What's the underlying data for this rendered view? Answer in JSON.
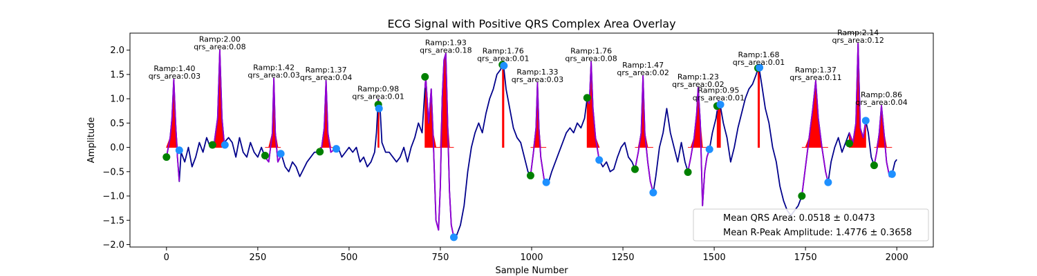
{
  "chart_data": {
    "type": "line",
    "title": "ECG Signal with Positive QRS Complex Area Overlay",
    "xlabel": "Sample Number",
    "ylabel": "Amplitude",
    "xlim": [
      -100,
      2100
    ],
    "ylim": [
      -2.05,
      2.35
    ],
    "grid": false,
    "x_ticks": [
      0,
      250,
      500,
      750,
      1000,
      1250,
      1500,
      1750,
      2000
    ],
    "x_tick_labels": [
      "0",
      "250",
      "500",
      "750",
      "1000",
      "1250",
      "1500",
      "1750",
      "2000"
    ],
    "y_ticks": [
      -2.0,
      -1.5,
      -1.0,
      -0.5,
      0.0,
      0.5,
      1.0,
      1.5,
      2.0
    ],
    "y_tick_labels": [
      "−2.0",
      "−1.5",
      "−1.0",
      "−0.5",
      "0.0",
      "0.5",
      "1.0",
      "1.5",
      "2.0"
    ],
    "colors": {
      "signal": "#00008b",
      "qrs_segment": "#9400d3",
      "qrs_fill": "#ff0000",
      "q_onset": "#008000",
      "s_offset": "#1e90ff"
    },
    "signal_points": [
      [
        0,
        -0.2
      ],
      [
        10,
        0.2
      ],
      [
        15,
        0.6
      ],
      [
        20,
        1.4
      ],
      [
        25,
        0.5
      ],
      [
        30,
        -0.2
      ],
      [
        35,
        -0.7
      ],
      [
        40,
        -0.1
      ],
      [
        50,
        -0.3
      ],
      [
        60,
        0.0
      ],
      [
        70,
        -0.4
      ],
      [
        80,
        -0.2
      ],
      [
        90,
        0.1
      ],
      [
        100,
        -0.1
      ],
      [
        110,
        0.2
      ],
      [
        120,
        0.0
      ],
      [
        130,
        0.05
      ],
      [
        140,
        0.6
      ],
      [
        146,
        2.0
      ],
      [
        152,
        0.6
      ],
      [
        158,
        0.1
      ],
      [
        170,
        0.2
      ],
      [
        180,
        0.1
      ],
      [
        190,
        -0.2
      ],
      [
        200,
        0.2
      ],
      [
        210,
        -0.1
      ],
      [
        220,
        -0.2
      ],
      [
        230,
        0.1
      ],
      [
        240,
        -0.1
      ],
      [
        250,
        -0.2
      ],
      [
        260,
        0.0
      ],
      [
        270,
        -0.2
      ],
      [
        280,
        -0.3
      ],
      [
        290,
        0.3
      ],
      [
        294,
        1.42
      ],
      [
        298,
        0.3
      ],
      [
        305,
        -0.3
      ],
      [
        315,
        -0.15
      ],
      [
        325,
        -0.4
      ],
      [
        335,
        -0.5
      ],
      [
        345,
        -0.3
      ],
      [
        355,
        -0.4
      ],
      [
        365,
        -0.6
      ],
      [
        375,
        -0.45
      ],
      [
        385,
        -0.3
      ],
      [
        395,
        -0.2
      ],
      [
        405,
        -0.1
      ],
      [
        415,
        -0.1
      ],
      [
        425,
        0.0
      ],
      [
        432,
        0.4
      ],
      [
        437,
        1.37
      ],
      [
        442,
        0.3
      ],
      [
        450,
        -0.1
      ],
      [
        460,
        -0.04
      ],
      [
        470,
        0.0
      ],
      [
        480,
        -0.2
      ],
      [
        490,
        -0.1
      ],
      [
        500,
        0.0
      ],
      [
        510,
        -0.1
      ],
      [
        520,
        0.0
      ],
      [
        530,
        -0.3
      ],
      [
        540,
        -0.2
      ],
      [
        550,
        -0.4
      ],
      [
        560,
        -0.3
      ],
      [
        570,
        -0.1
      ],
      [
        575,
        0.3
      ],
      [
        580,
        0.98
      ],
      [
        585,
        0.8
      ],
      [
        590,
        0.1
      ],
      [
        600,
        -0.1
      ],
      [
        610,
        -0.1
      ],
      [
        620,
        -0.2
      ],
      [
        630,
        -0.3
      ],
      [
        640,
        -0.2
      ],
      [
        650,
        0.0
      ],
      [
        660,
        -0.3
      ],
      [
        670,
        0.0
      ],
      [
        680,
        0.2
      ],
      [
        690,
        0.5
      ],
      [
        700,
        0.3
      ],
      [
        710,
        1.45
      ],
      [
        718,
        0.5
      ],
      [
        725,
        1.2
      ],
      [
        730,
        0.3
      ],
      [
        738,
        -1.5
      ],
      [
        745,
        -1.7
      ],
      [
        750,
        -0.8
      ],
      [
        755,
        1.0
      ],
      [
        760,
        1.8
      ],
      [
        765,
        1.93
      ],
      [
        770,
        0.5
      ],
      [
        775,
        -0.9
      ],
      [
        780,
        -1.6
      ],
      [
        787,
        -1.85
      ],
      [
        795,
        -1.8
      ],
      [
        805,
        -1.6
      ],
      [
        815,
        -1.2
      ],
      [
        825,
        -0.5
      ],
      [
        835,
        0.0
      ],
      [
        845,
        0.3
      ],
      [
        855,
        0.5
      ],
      [
        865,
        0.3
      ],
      [
        875,
        0.7
      ],
      [
        885,
        1.0
      ],
      [
        895,
        1.2
      ],
      [
        905,
        1.5
      ],
      [
        915,
        1.6
      ],
      [
        922,
        1.76
      ],
      [
        930,
        1.2
      ],
      [
        940,
        0.8
      ],
      [
        950,
        0.4
      ],
      [
        960,
        0.2
      ],
      [
        970,
        0.1
      ],
      [
        980,
        -0.2
      ],
      [
        990,
        -0.5
      ],
      [
        997,
        -0.58
      ],
      [
        1005,
        -0.1
      ],
      [
        1012,
        0.4
      ],
      [
        1016,
        1.33
      ],
      [
        1020,
        0.4
      ],
      [
        1025,
        -0.2
      ],
      [
        1035,
        -0.7
      ],
      [
        1045,
        -0.75
      ],
      [
        1055,
        -0.5
      ],
      [
        1065,
        -0.3
      ],
      [
        1075,
        -0.1
      ],
      [
        1085,
        0.1
      ],
      [
        1095,
        0.3
      ],
      [
        1105,
        0.4
      ],
      [
        1115,
        0.3
      ],
      [
        1125,
        0.5
      ],
      [
        1135,
        0.4
      ],
      [
        1145,
        0.6
      ],
      [
        1152,
        1.0
      ],
      [
        1158,
        0.9
      ],
      [
        1163,
        1.76
      ],
      [
        1168,
        0.8
      ],
      [
        1175,
        0.2
      ],
      [
        1185,
        -0.26
      ],
      [
        1195,
        -0.4
      ],
      [
        1205,
        -0.3
      ],
      [
        1215,
        -0.5
      ],
      [
        1225,
        -0.45
      ],
      [
        1235,
        -0.2
      ],
      [
        1245,
        0.0
      ],
      [
        1255,
        0.1
      ],
      [
        1265,
        -0.2
      ],
      [
        1275,
        -0.3
      ],
      [
        1283,
        -0.45
      ],
      [
        1292,
        -0.1
      ],
      [
        1300,
        0.3
      ],
      [
        1305,
        1.47
      ],
      [
        1310,
        0.3
      ],
      [
        1318,
        -0.3
      ],
      [
        1325,
        -0.7
      ],
      [
        1333,
        -0.93
      ],
      [
        1340,
        -0.6
      ],
      [
        1350,
        0.0
      ],
      [
        1360,
        0.3
      ],
      [
        1370,
        0.8
      ],
      [
        1380,
        0.3
      ],
      [
        1390,
        0.0
      ],
      [
        1400,
        -0.3
      ],
      [
        1410,
        0.1
      ],
      [
        1420,
        -0.3
      ],
      [
        1428,
        -0.5
      ],
      [
        1436,
        -0.2
      ],
      [
        1445,
        0.2
      ],
      [
        1452,
        0.7
      ],
      [
        1456,
        1.23
      ],
      [
        1462,
        0.5
      ],
      [
        1468,
        -1.2
      ],
      [
        1474,
        -0.5
      ],
      [
        1480,
        -0.2
      ],
      [
        1487,
        -0.04
      ],
      [
        1495,
        0.3
      ],
      [
        1505,
        0.6
      ],
      [
        1512,
        0.95
      ],
      [
        1518,
        0.8
      ],
      [
        1525,
        0.5
      ],
      [
        1535,
        0.2
      ],
      [
        1545,
        -0.3
      ],
      [
        1555,
        0.0
      ],
      [
        1565,
        0.4
      ],
      [
        1575,
        0.7
      ],
      [
        1585,
        1.0
      ],
      [
        1595,
        1.2
      ],
      [
        1605,
        1.3
      ],
      [
        1615,
        1.5
      ],
      [
        1622,
        1.68
      ],
      [
        1630,
        1.3
      ],
      [
        1640,
        0.8
      ],
      [
        1650,
        0.5
      ],
      [
        1660,
        0.0
      ],
      [
        1670,
        -0.3
      ],
      [
        1680,
        -0.8
      ],
      [
        1690,
        -1.1
      ],
      [
        1700,
        -1.3
      ],
      [
        1710,
        -1.4
      ],
      [
        1720,
        -1.3
      ],
      [
        1730,
        -1.2
      ],
      [
        1740,
        -1.0
      ],
      [
        1750,
        -0.4
      ],
      [
        1760,
        0.2
      ],
      [
        1770,
        0.8
      ],
      [
        1778,
        1.37
      ],
      [
        1785,
        0.6
      ],
      [
        1795,
        0.0
      ],
      [
        1805,
        -0.5
      ],
      [
        1812,
        -0.72
      ],
      [
        1820,
        -0.3
      ],
      [
        1830,
        0.0
      ],
      [
        1840,
        0.2
      ],
      [
        1850,
        -0.1
      ],
      [
        1860,
        0.1
      ],
      [
        1870,
        0.3
      ],
      [
        1880,
        0.1
      ],
      [
        1888,
        0.5
      ],
      [
        1894,
        2.14
      ],
      [
        1900,
        0.4
      ],
      [
        1908,
        0.2
      ],
      [
        1915,
        0.55
      ],
      [
        1922,
        0.3
      ],
      [
        1930,
        -0.2
      ],
      [
        1938,
        -0.37
      ],
      [
        1945,
        -0.1
      ],
      [
        1952,
        0.3
      ],
      [
        1958,
        0.86
      ],
      [
        1965,
        0.3
      ],
      [
        1972,
        -0.3
      ],
      [
        1980,
        -0.6
      ],
      [
        1987,
        -0.55
      ],
      [
        1995,
        -0.3
      ],
      [
        2000,
        -0.25
      ]
    ],
    "qrs_complexes": [
      {
        "q_onset": [
          0,
          -0.2
        ],
        "r_peak": [
          22,
          1.4
        ],
        "s_offset": [
          35,
          -0.06
        ],
        "ramp_label": "Ramp:1.40",
        "area_label": "qrs_area:0.03"
      },
      {
        "q_onset": [
          126,
          0.05
        ],
        "r_peak": [
          146,
          2.0
        ],
        "s_offset": [
          160,
          0.05
        ],
        "ramp_label": "Ramp:2.00",
        "area_label": "qrs_area:0.08"
      },
      {
        "q_onset": [
          270,
          -0.17
        ],
        "r_peak": [
          294,
          1.42
        ],
        "s_offset": [
          313,
          -0.13
        ],
        "ramp_label": "Ramp:1.42",
        "area_label": "qrs_area:0.03"
      },
      {
        "q_onset": [
          420,
          -0.09
        ],
        "r_peak": [
          437,
          1.37
        ],
        "s_offset": [
          465,
          -0.03
        ],
        "ramp_label": "Ramp:1.37",
        "area_label": "qrs_area:0.04"
      },
      {
        "q_onset": [
          580,
          0.88
        ],
        "r_peak": [
          580,
          0.98
        ],
        "s_offset": [
          582,
          0.8
        ],
        "ramp_label": "Ramp:0.98",
        "area_label": "qrs_area:0.01"
      },
      {
        "q_onset": [
          708,
          1.45
        ],
        "r_peak": [
          765,
          1.93
        ],
        "s_offset": [
          787,
          -1.85
        ],
        "ramp_label": "Ramp:1.93",
        "area_label": "qrs_area:0.18"
      },
      {
        "q_onset": [
          920,
          1.7
        ],
        "r_peak": [
          922,
          1.76
        ],
        "s_offset": [
          924,
          1.68
        ],
        "ramp_label": "Ramp:1.76",
        "area_label": "qrs_area:0.01"
      },
      {
        "q_onset": [
          997,
          -0.58
        ],
        "r_peak": [
          1016,
          1.33
        ],
        "s_offset": [
          1040,
          -0.72
        ],
        "ramp_label": "Ramp:1.33",
        "area_label": "qrs_area:0.03"
      },
      {
        "q_onset": [
          1152,
          1.02
        ],
        "r_peak": [
          1163,
          1.76
        ],
        "s_offset": [
          1185,
          -0.26
        ],
        "ramp_label": "Ramp:1.76",
        "area_label": "qrs_area:0.08"
      },
      {
        "q_onset": [
          1283,
          -0.45
        ],
        "r_peak": [
          1305,
          1.47
        ],
        "s_offset": [
          1333,
          -0.93
        ],
        "ramp_label": "Ramp:1.47",
        "area_label": "qrs_area:0.02"
      },
      {
        "q_onset": [
          1428,
          -0.51
        ],
        "r_peak": [
          1456,
          1.23
        ],
        "s_offset": [
          1487,
          -0.04
        ],
        "ramp_label": "Ramp:1.23",
        "area_label": "qrs_area:0.02"
      },
      {
        "q_onset": [
          1508,
          0.85
        ],
        "r_peak": [
          1512,
          0.95
        ],
        "s_offset": [
          1517,
          0.88
        ],
        "ramp_label": "Ramp:0.95",
        "area_label": "qrs_area:0.01"
      },
      {
        "q_onset": [
          1620,
          1.63
        ],
        "r_peak": [
          1622,
          1.68
        ],
        "s_offset": [
          1624,
          1.64
        ],
        "ramp_label": "Ramp:1.68",
        "area_label": "qrs_area:0.01"
      },
      {
        "q_onset": [
          1740,
          -1.0
        ],
        "r_peak": [
          1778,
          1.37
        ],
        "s_offset": [
          1812,
          -0.72
        ],
        "ramp_label": "Ramp:1.37",
        "area_label": "qrs_area:0.11"
      },
      {
        "q_onset": [
          1870,
          0.08
        ],
        "r_peak": [
          1894,
          2.14
        ],
        "s_offset": [
          1915,
          0.55
        ],
        "ramp_label": "Ramp:2.14",
        "area_label": "qrs_area:0.12"
      },
      {
        "q_onset": [
          1938,
          -0.37
        ],
        "r_peak": [
          1958,
          0.86
        ],
        "s_offset": [
          1987,
          -0.55
        ],
        "ramp_label": "Ramp:0.86",
        "area_label": "qrs_area:0.04"
      }
    ],
    "legend": {
      "location": "lower-right",
      "entries": [
        "Mean QRS Area: 0.0518 ± 0.0473",
        "Mean R-Peak Amplitude: 1.4776 ± 0.3658"
      ]
    }
  }
}
